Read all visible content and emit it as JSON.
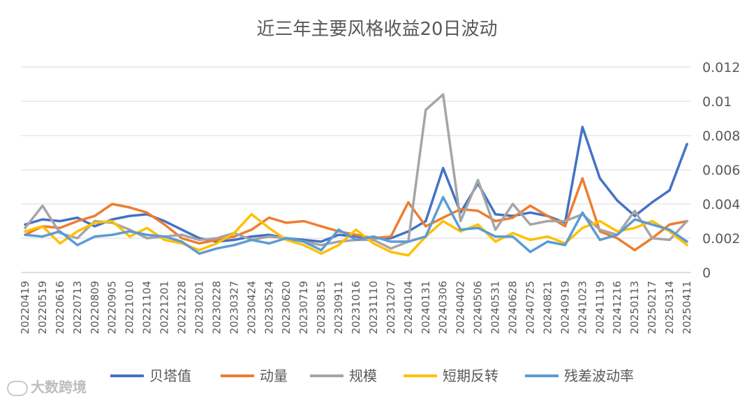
{
  "watermark": "大数跨境",
  "chart_data": {
    "type": "line",
    "title": "近三年主要风格收益20日波动",
    "ylim": [
      0,
      0.012
    ],
    "yticks": [
      "0",
      "0.002",
      "0.004",
      "0.006",
      "0.008",
      "0.01",
      "0.012"
    ],
    "grid": true,
    "legend_position": "bottom",
    "x": [
      "20220419",
      "20220519",
      "20220616",
      "20220713",
      "20220809",
      "20220905",
      "20221010",
      "20221104",
      "20221201",
      "20221228",
      "20230201",
      "20230228",
      "20230327",
      "20230424",
      "20230524",
      "20230620",
      "20230719",
      "20230815",
      "20230911",
      "20231016",
      "20231110",
      "20231207",
      "20240104",
      "20240131",
      "20240306",
      "20240402",
      "20240506",
      "20240531",
      "20240628",
      "20240725",
      "20240821",
      "20240919",
      "20241023",
      "20241119",
      "20241216",
      "20250113",
      "20250217",
      "20250314",
      "20250411"
    ],
    "series": [
      {
        "name": "贝塔值",
        "color": "#4472C4",
        "values": [
          0.0028,
          0.0031,
          0.003,
          0.0032,
          0.0027,
          0.0031,
          0.0033,
          0.0034,
          0.003,
          0.0025,
          0.002,
          0.0018,
          0.0019,
          0.0021,
          0.0022,
          0.002,
          0.0019,
          0.0018,
          0.0022,
          0.0021,
          0.002,
          0.002,
          0.0024,
          0.003,
          0.0061,
          0.0035,
          0.0052,
          0.0034,
          0.0033,
          0.0035,
          0.0033,
          0.0029,
          0.0085,
          0.0055,
          0.0042,
          0.0033,
          0.0041,
          0.0048,
          0.0075
        ]
      },
      {
        "name": "动量",
        "color": "#ED7D31",
        "values": [
          0.0022,
          0.0027,
          0.0026,
          0.003,
          0.0033,
          0.004,
          0.0038,
          0.0035,
          0.0028,
          0.002,
          0.0017,
          0.0019,
          0.0021,
          0.0025,
          0.0032,
          0.0029,
          0.003,
          0.0027,
          0.0024,
          0.0022,
          0.002,
          0.0021,
          0.0041,
          0.0027,
          0.0032,
          0.0037,
          0.0036,
          0.003,
          0.0032,
          0.0039,
          0.0033,
          0.0027,
          0.0055,
          0.0024,
          0.002,
          0.0013,
          0.002,
          0.0028,
          0.003
        ]
      },
      {
        "name": "规模",
        "color": "#A5A5A5",
        "values": [
          0.0026,
          0.0039,
          0.0023,
          0.002,
          0.003,
          0.0029,
          0.0025,
          0.002,
          0.0021,
          0.0022,
          0.0019,
          0.002,
          0.0023,
          0.0019,
          0.0021,
          0.002,
          0.0018,
          0.0016,
          0.0018,
          0.0019,
          0.0019,
          0.0014,
          0.0018,
          0.0095,
          0.0104,
          0.003,
          0.0054,
          0.0025,
          0.004,
          0.0028,
          0.003,
          0.003,
          0.0034,
          0.0025,
          0.0022,
          0.0036,
          0.002,
          0.0019,
          0.003
        ]
      },
      {
        "name": "短期反转",
        "color": "#FFC000",
        "values": [
          0.0024,
          0.0027,
          0.0017,
          0.0024,
          0.0029,
          0.003,
          0.0021,
          0.0026,
          0.0019,
          0.0017,
          0.0013,
          0.0017,
          0.0023,
          0.0034,
          0.0026,
          0.0019,
          0.0016,
          0.0011,
          0.0016,
          0.0025,
          0.0017,
          0.0012,
          0.001,
          0.0021,
          0.003,
          0.0024,
          0.0028,
          0.0018,
          0.0023,
          0.0019,
          0.0021,
          0.0017,
          0.0026,
          0.003,
          0.0024,
          0.0026,
          0.003,
          0.0024,
          0.0016
        ]
      },
      {
        "name": "残差波动率",
        "color": "#5B9BD5",
        "values": [
          0.0022,
          0.0021,
          0.0024,
          0.0016,
          0.0021,
          0.0022,
          0.0024,
          0.0022,
          0.0021,
          0.0018,
          0.0011,
          0.0014,
          0.0016,
          0.0019,
          0.0017,
          0.002,
          0.0018,
          0.0013,
          0.0025,
          0.0019,
          0.0021,
          0.0018,
          0.0018,
          0.0021,
          0.0044,
          0.0025,
          0.0026,
          0.0021,
          0.0021,
          0.0012,
          0.0018,
          0.0016,
          0.0035,
          0.0019,
          0.0022,
          0.0031,
          0.0028,
          0.0025,
          0.0018
        ]
      }
    ]
  }
}
